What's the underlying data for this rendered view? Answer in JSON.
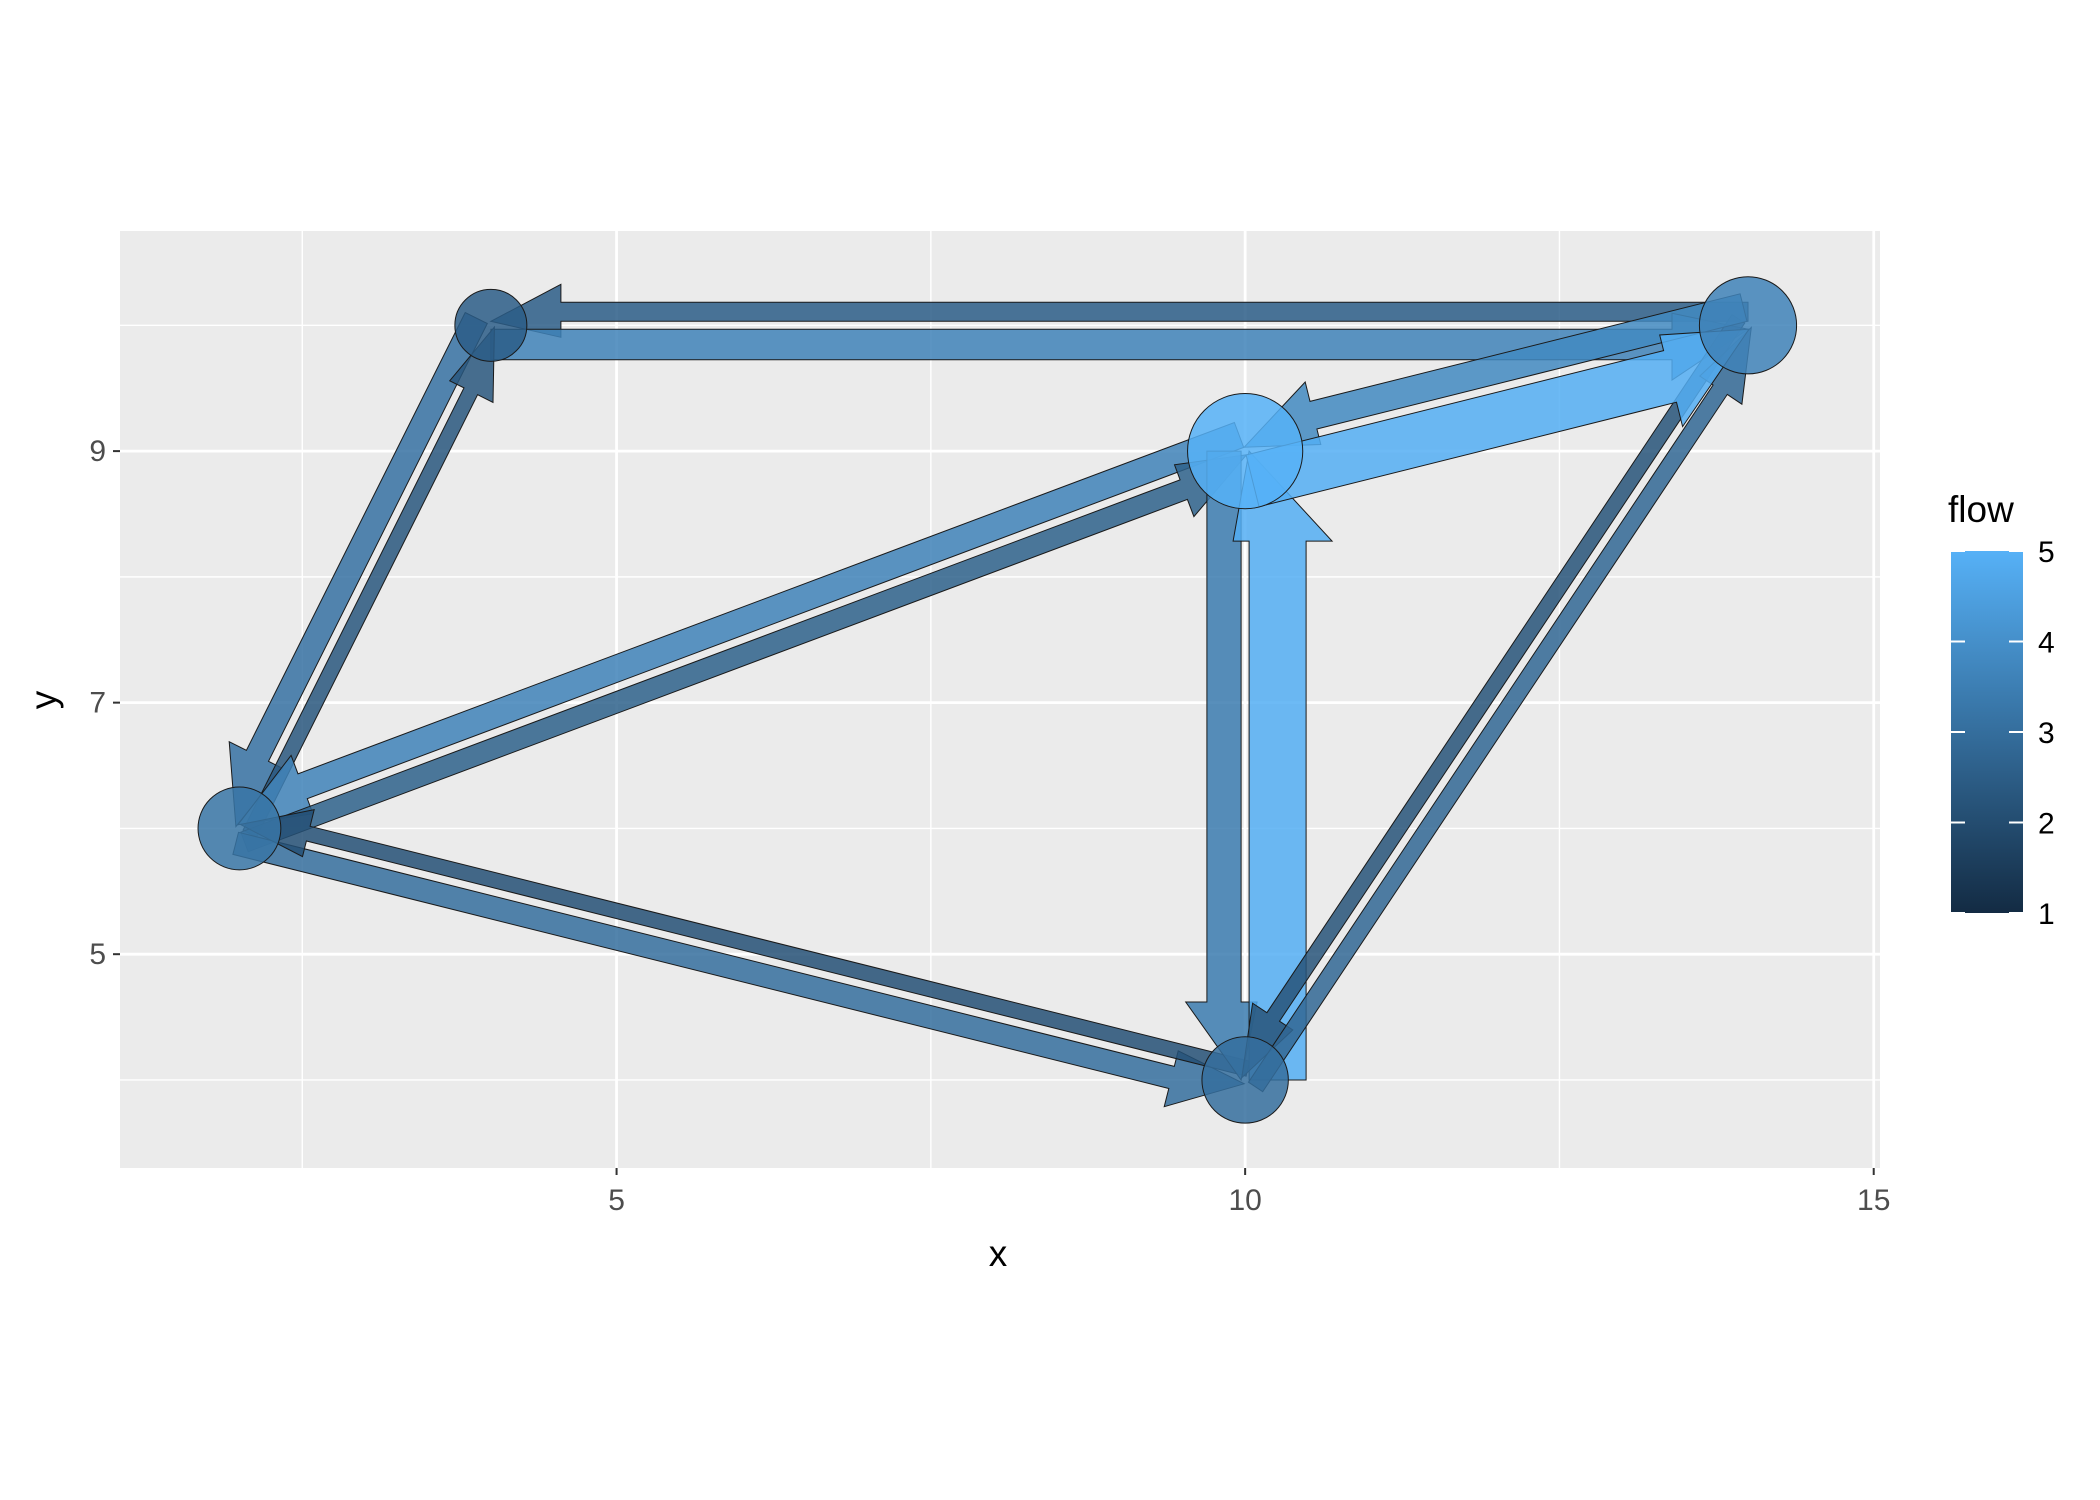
{
  "chart_data": {
    "type": "network-flow",
    "xlabel": "x",
    "ylabel": "y",
    "xlim": [
      1.05,
      15.05
    ],
    "ylim": [
      3.3,
      10.75
    ],
    "x_ticks": [
      5,
      10,
      15
    ],
    "y_ticks": [
      5,
      7,
      9
    ],
    "x_tick_labels": [
      "5",
      "10",
      "15"
    ],
    "y_tick_labels": [
      "5",
      "7",
      "9"
    ],
    "grid": true,
    "legend": {
      "title": "flow",
      "position": "right",
      "min": 1,
      "max": 5,
      "ticks": [
        "1",
        "2",
        "3",
        "4",
        "5"
      ],
      "low_color": "#132b43",
      "high_color": "#56b1f7"
    },
    "nodes": [
      {
        "x": 4,
        "y": 10,
        "flow": 2.5,
        "size": 1.0
      },
      {
        "x": 2,
        "y": 6,
        "flow": 3.2,
        "size": 1.15
      },
      {
        "x": 10,
        "y": 9,
        "flow": 5.0,
        "size": 1.6
      },
      {
        "x": 14,
        "y": 10,
        "flow": 3.6,
        "size": 1.35
      },
      {
        "x": 10,
        "y": 4,
        "flow": 3.0,
        "size": 1.2
      }
    ],
    "edges": [
      {
        "from": [
          14,
          10
        ],
        "to": [
          4,
          10
        ],
        "flow": 2.5,
        "width": 1.0
      },
      {
        "from": [
          4,
          10
        ],
        "to": [
          14,
          10
        ],
        "flow": 3.6,
        "width": 1.6
      },
      {
        "from": [
          4,
          10
        ],
        "to": [
          2,
          6
        ],
        "flow": 3.1,
        "width": 1.3
      },
      {
        "from": [
          2,
          6
        ],
        "to": [
          4,
          10
        ],
        "flow": 2.3,
        "width": 0.8
      },
      {
        "from": [
          10,
          9
        ],
        "to": [
          2,
          6
        ],
        "flow": 3.6,
        "width": 1.4
      },
      {
        "from": [
          2,
          6
        ],
        "to": [
          10,
          9
        ],
        "flow": 2.6,
        "width": 1.1
      },
      {
        "from": [
          2,
          6
        ],
        "to": [
          10,
          4
        ],
        "flow": 3.0,
        "width": 1.2
      },
      {
        "from": [
          10,
          4
        ],
        "to": [
          2,
          6
        ],
        "flow": 2.1,
        "width": 0.8
      },
      {
        "from": [
          10,
          9
        ],
        "to": [
          10,
          4
        ],
        "flow": 3.4,
        "width": 1.8
      },
      {
        "from": [
          10,
          4
        ],
        "to": [
          10,
          9
        ],
        "flow": 4.9,
        "width": 3.0
      },
      {
        "from": [
          14,
          10
        ],
        "to": [
          10,
          4
        ],
        "flow": 2.2,
        "width": 0.8
      },
      {
        "from": [
          10,
          4
        ],
        "to": [
          14,
          10
        ],
        "flow": 2.8,
        "width": 0.9
      },
      {
        "from": [
          14,
          10
        ],
        "to": [
          10,
          9
        ],
        "flow": 3.8,
        "width": 1.5
      },
      {
        "from": [
          10,
          9
        ],
        "to": [
          14,
          10
        ],
        "flow": 4.9,
        "width": 2.8
      }
    ]
  }
}
